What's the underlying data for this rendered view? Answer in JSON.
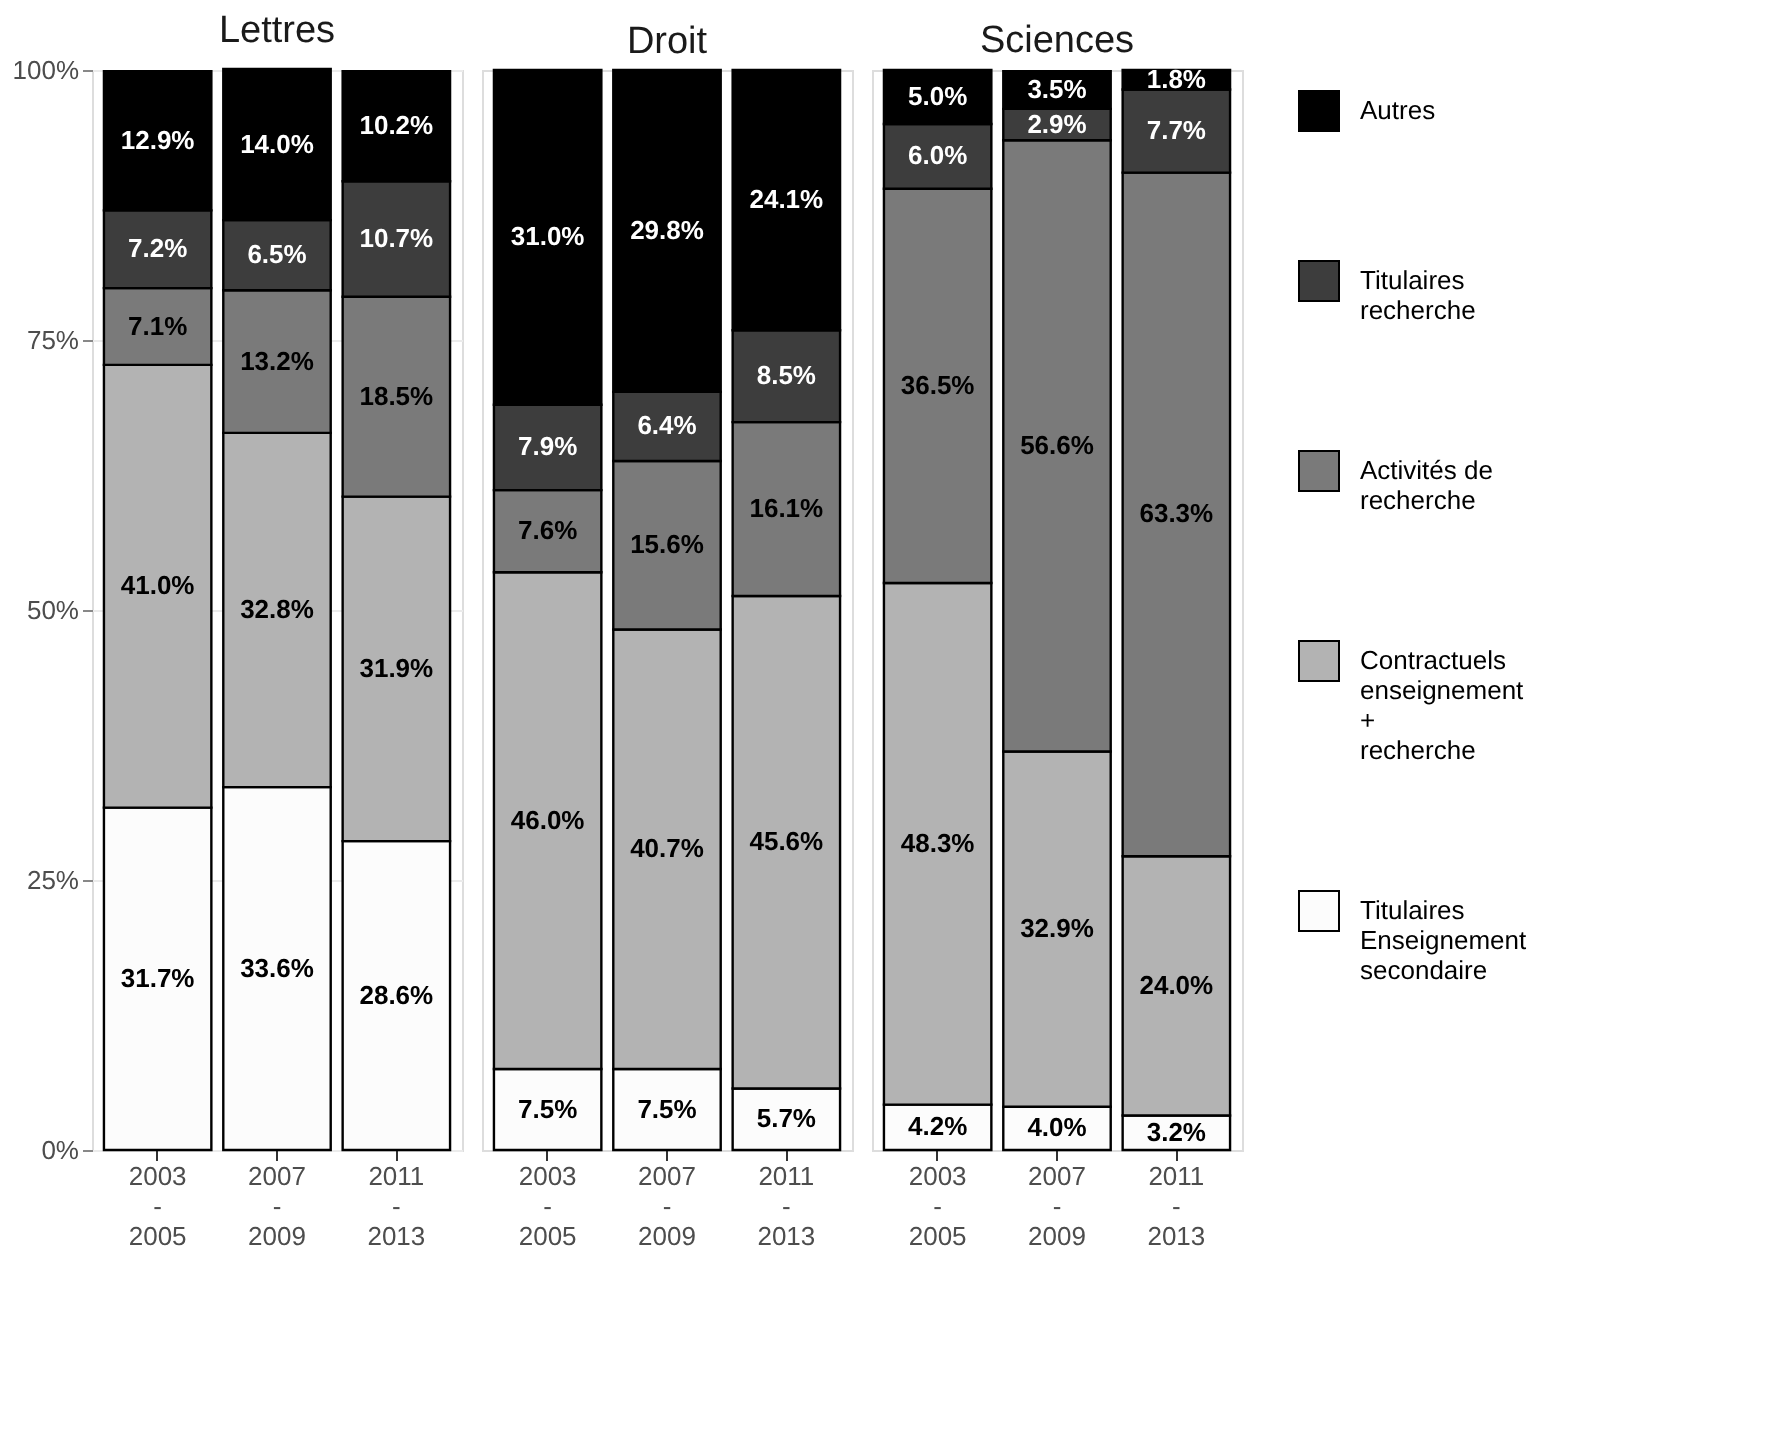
{
  "chart_data": [
    {
      "type": "bar",
      "stacked": true,
      "title": "Lettres",
      "categories": [
        "2003\n-\n2005",
        "2007\n-\n2009",
        "2011\n-\n2013"
      ],
      "ylim": [
        0,
        100
      ],
      "yticks": [
        {
          "value": 0,
          "label": "0%"
        },
        {
          "value": 25,
          "label": "25%"
        },
        {
          "value": 50,
          "label": "50%"
        },
        {
          "value": 75,
          "label": "75%"
        },
        {
          "value": 100,
          "label": "100%"
        }
      ],
      "grid": true,
      "series": [
        {
          "color": "#fcfcfc",
          "values": [
            31.7,
            33.6,
            28.6
          ],
          "value_labels": [
            "31.7%",
            "33.6%",
            "28.6%"
          ]
        },
        {
          "color": "#b3b3b3",
          "values": [
            41.0,
            32.8,
            31.9
          ],
          "value_labels": [
            "41.0%",
            "32.8%",
            "31.9%"
          ]
        },
        {
          "color": "#7a7a7a",
          "values": [
            7.1,
            13.2,
            18.5
          ],
          "value_labels": [
            "7.1%",
            "13.2%",
            "18.5%"
          ]
        },
        {
          "color": "#3d3d3d",
          "values": [
            7.2,
            6.5,
            10.7
          ],
          "value_labels": [
            "7.2%",
            "6.5%",
            "10.7%"
          ]
        },
        {
          "color": "#000000",
          "values": [
            12.9,
            14.0,
            10.2
          ],
          "value_labels": [
            "12.9%",
            "14.0%",
            "10.2%"
          ]
        }
      ]
    },
    {
      "type": "bar",
      "stacked": true,
      "title": "Droit",
      "categories": [
        "2003\n-\n2005",
        "2007\n-\n2009",
        "2011\n-\n2013"
      ],
      "ylim": [
        0,
        100
      ],
      "tick_labels": "x",
      "grid": true,
      "series": [
        {
          "color": "#fcfcfc",
          "values": [
            7.5,
            7.5,
            5.7
          ],
          "value_labels": [
            "7.5%",
            "7.5%",
            "5.7%"
          ]
        },
        {
          "color": "#b3b3b3",
          "values": [
            46.0,
            40.7,
            45.6
          ],
          "value_labels": [
            "46.0%",
            "40.7%",
            "45.6%"
          ]
        },
        {
          "color": "#7a7a7a",
          "values": [
            7.6,
            15.6,
            16.1
          ],
          "value_labels": [
            "7.6%",
            "15.6%",
            "16.1%"
          ]
        },
        {
          "color": "#3d3d3d",
          "values": [
            7.9,
            6.4,
            8.5
          ],
          "value_labels": [
            "7.9%",
            "6.4%",
            "8.5%"
          ]
        },
        {
          "color": "#000000",
          "values": [
            31.0,
            29.8,
            24.1
          ],
          "value_labels": [
            "31.0%",
            "29.8%",
            "24.1%"
          ]
        }
      ]
    },
    {
      "type": "bar",
      "stacked": true,
      "title": "Sciences",
      "categories": [
        "2003\n-\n2005",
        "2007\n-\n2009",
        "2011\n-\n2013"
      ],
      "ylim": [
        0,
        100
      ],
      "tick_labels": "x",
      "grid": true,
      "legend": "right",
      "series": [
        {
          "name": "Titulaires\nEnseignement\nsecondaire",
          "color": "#fcfcfc",
          "values": [
            4.2,
            4.0,
            3.2
          ],
          "value_labels": [
            "4.2%",
            "4.0%",
            "3.2%"
          ]
        },
        {
          "name": "Contractuels\nenseignement\n+\nrecherche",
          "color": "#b3b3b3",
          "values": [
            48.3,
            32.9,
            24.0
          ],
          "value_labels": [
            "48.3%",
            "32.9%",
            "24.0%"
          ]
        },
        {
          "name": "Activités de\nrecherche",
          "color": "#7a7a7a",
          "values": [
            36.5,
            56.6,
            63.3
          ],
          "value_labels": [
            "36.5%",
            "56.6%",
            "63.3%"
          ]
        },
        {
          "name": "Titulaires\nrecherche",
          "color": "#3d3d3d",
          "values": [
            6.0,
            2.9,
            7.7
          ],
          "value_labels": [
            "6.0%",
            "2.9%",
            "7.7%"
          ]
        },
        {
          "name": "Autres",
          "color": "#000000",
          "values": [
            5.0,
            3.5,
            1.8
          ],
          "value_labels": [
            "5.0%",
            "3.5%",
            "1.8%"
          ]
        }
      ]
    }
  ]
}
